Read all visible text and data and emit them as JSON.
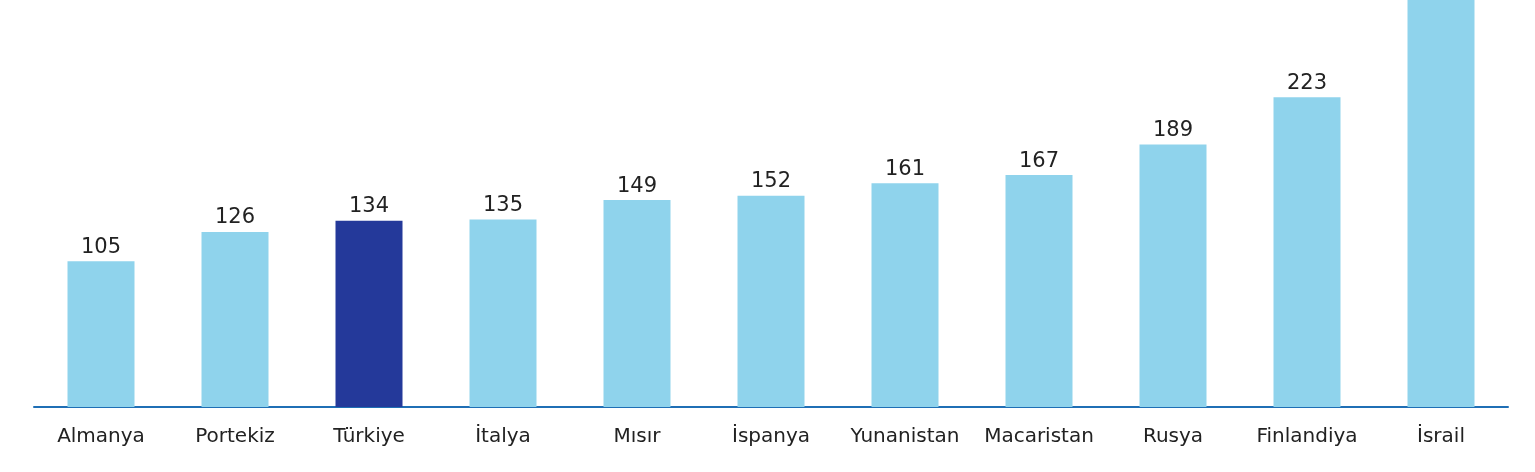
{
  "chart_data": {
    "type": "bar",
    "categories": [
      "Almanya",
      "Portekiz",
      "Türkiye",
      "İtalya",
      "Mısır",
      "İspanya",
      "Yunanistan",
      "Macaristan",
      "Rusya",
      "Finlandiya",
      "İsrail"
    ],
    "values": [
      105,
      126,
      134,
      135,
      149,
      152,
      161,
      167,
      189,
      223,
      293
    ],
    "value_labels": [
      "105",
      "126",
      "134",
      "135",
      "149",
      "152",
      "161",
      "167",
      "189",
      "223",
      null
    ],
    "colors": [
      "#8fd3ec",
      "#8fd3ec",
      "#24399a",
      "#8fd3ec",
      "#8fd3ec",
      "#8fd3ec",
      "#8fd3ec",
      "#8fd3ec",
      "#8fd3ec",
      "#8fd3ec",
      "#8fd3ec"
    ],
    "ylim": [
      0,
      293
    ]
  }
}
